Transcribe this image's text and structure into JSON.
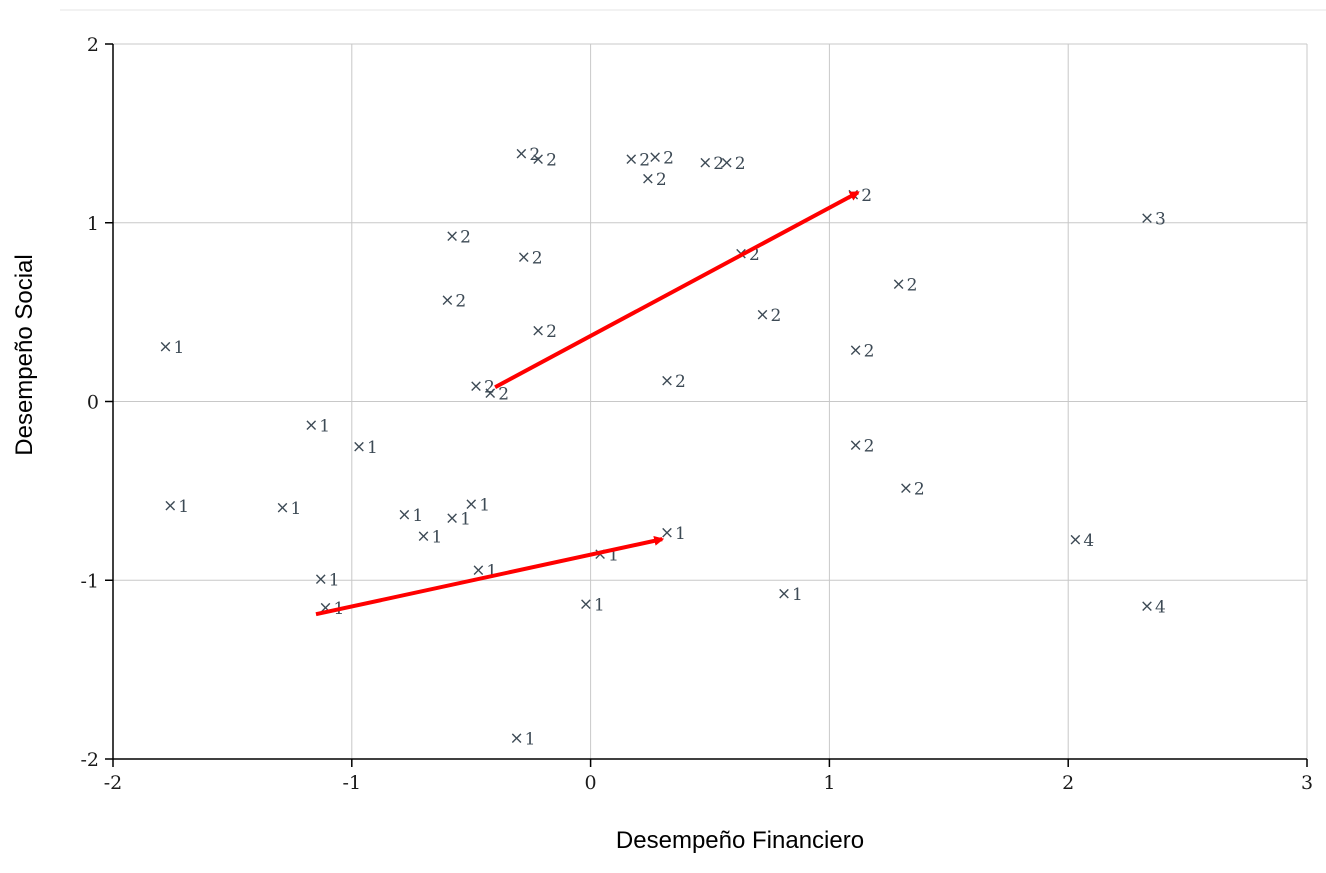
{
  "chart_data": {
    "type": "scatter",
    "title": "",
    "xlabel": "Desempeño Financiero",
    "ylabel": "Desempeño Social",
    "xlim": [
      -2,
      3
    ],
    "ylim": [
      -2,
      2
    ],
    "xticks": [
      "-2",
      "-1",
      "0",
      "1",
      "2",
      "3"
    ],
    "yticks": [
      "-2",
      "-1",
      "0",
      "1",
      "2"
    ],
    "grid": true,
    "colors": {
      "grid": "#c8c8c8",
      "axis": "#000000",
      "marker": "#3d4a55",
      "arrow": "#ff0000"
    },
    "points": [
      {
        "x": -1.78,
        "y": 0.31,
        "label": "1"
      },
      {
        "x": -1.76,
        "y": -0.58,
        "label": "1"
      },
      {
        "x": -1.29,
        "y": -0.59,
        "label": "1"
      },
      {
        "x": -1.17,
        "y": -0.13,
        "label": "1"
      },
      {
        "x": -0.97,
        "y": -0.25,
        "label": "1"
      },
      {
        "x": -1.13,
        "y": -0.99,
        "label": "1"
      },
      {
        "x": -1.11,
        "y": -1.15,
        "label": "1"
      },
      {
        "x": -0.78,
        "y": -0.63,
        "label": "1"
      },
      {
        "x": -0.7,
        "y": -0.75,
        "label": "1"
      },
      {
        "x": -0.58,
        "y": -0.65,
        "label": "1"
      },
      {
        "x": -0.5,
        "y": -0.57,
        "label": "1"
      },
      {
        "x": -0.47,
        "y": -0.94,
        "label": "1"
      },
      {
        "x": 0.04,
        "y": -0.85,
        "label": "1"
      },
      {
        "x": 0.32,
        "y": -0.73,
        "label": "1"
      },
      {
        "x": -0.02,
        "y": -1.13,
        "label": "1"
      },
      {
        "x": 0.81,
        "y": -1.07,
        "label": "1"
      },
      {
        "x": -0.31,
        "y": -1.88,
        "label": "1"
      },
      {
        "x": -0.29,
        "y": 1.39,
        "label": "2"
      },
      {
        "x": -0.22,
        "y": 1.36,
        "label": "2"
      },
      {
        "x": 0.17,
        "y": 1.36,
        "label": "2"
      },
      {
        "x": 0.27,
        "y": 1.37,
        "label": "2"
      },
      {
        "x": 0.24,
        "y": 1.25,
        "label": "2"
      },
      {
        "x": 0.48,
        "y": 1.34,
        "label": "2"
      },
      {
        "x": 0.57,
        "y": 1.34,
        "label": "2"
      },
      {
        "x": 1.1,
        "y": 1.16,
        "label": "2"
      },
      {
        "x": -0.58,
        "y": 0.93,
        "label": "2"
      },
      {
        "x": -0.28,
        "y": 0.81,
        "label": "2"
      },
      {
        "x": 0.63,
        "y": 0.83,
        "label": "2"
      },
      {
        "x": -0.6,
        "y": 0.57,
        "label": "2"
      },
      {
        "x": 1.29,
        "y": 0.66,
        "label": "2"
      },
      {
        "x": 0.72,
        "y": 0.49,
        "label": "2"
      },
      {
        "x": -0.22,
        "y": 0.4,
        "label": "2"
      },
      {
        "x": 1.11,
        "y": 0.29,
        "label": "2"
      },
      {
        "x": -0.48,
        "y": 0.09,
        "label": "2"
      },
      {
        "x": -0.42,
        "y": 0.05,
        "label": "2"
      },
      {
        "x": 0.32,
        "y": 0.12,
        "label": "2"
      },
      {
        "x": 1.11,
        "y": -0.24,
        "label": "2"
      },
      {
        "x": 1.32,
        "y": -0.48,
        "label": "2"
      },
      {
        "x": 2.33,
        "y": 1.03,
        "label": "3"
      },
      {
        "x": 2.03,
        "y": -0.77,
        "label": "4"
      },
      {
        "x": 2.33,
        "y": -1.14,
        "label": "4"
      }
    ],
    "arrows": [
      {
        "from": {
          "x": -0.4,
          "y": 0.08
        },
        "to": {
          "x": 1.12,
          "y": 1.17
        }
      },
      {
        "from": {
          "x": -1.15,
          "y": -1.19
        },
        "to": {
          "x": 0.3,
          "y": -0.77
        }
      }
    ]
  }
}
